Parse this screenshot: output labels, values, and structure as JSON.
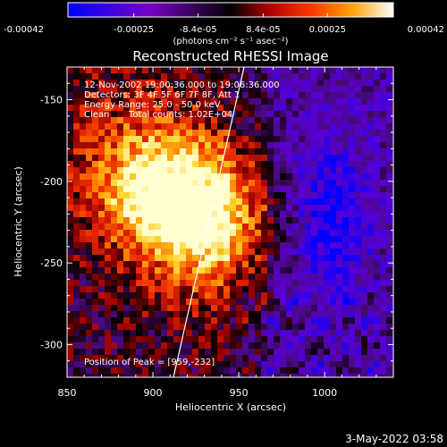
{
  "colorbar": {
    "tick_labels": [
      "-0.00042",
      "-0.00025",
      "-8.4e-05",
      "8.4e-05",
      "0.00025",
      "0.00042"
    ],
    "tick_values": [
      -0.00042,
      -0.00025,
      -8.4e-05,
      8.4e-05,
      0.00025,
      0.00042
    ],
    "range": [
      -0.00042,
      0.00042
    ],
    "units_label": "(photons cm⁻² s⁻¹ asec⁻²)",
    "colormap": [
      "#0000ff",
      "#7a00c8",
      "#000000",
      "#9a0000",
      "#ff3000",
      "#ff9a00",
      "#ffff80",
      "#ffffff"
    ]
  },
  "plot": {
    "title": "Reconstructed RHESSI Image",
    "info_lines": [
      "12-Nov-2002 19:00:36.000 to 19:06:36.000",
      "Detectors: 3F 4F 5F 6F 7F 8F, Att 1",
      "Energy Range: 25.0 - 50.0 keV"
    ],
    "clean_label": "Clean",
    "total_counts_label": "Total counts: 1.02E+04",
    "peak_label": "Position of Peak = [959,-232]",
    "xlabel": "Heliocentric X (arcsec)",
    "ylabel": "Heliocentric Y (arcsec)",
    "x_tick_labels": [
      "850",
      "900",
      "950",
      "1000"
    ],
    "y_tick_labels": [
      "-150",
      "-200",
      "-250",
      "-300"
    ],
    "x_ticks": [
      850,
      900,
      950,
      1000
    ],
    "y_ticks": [
      -150,
      -200,
      -250,
      -300
    ],
    "xlim": [
      850,
      1040
    ],
    "ylim": [
      -320,
      -130
    ],
    "peak": [
      959,
      -232
    ]
  },
  "timestamp": "3-May-2022 03:58"
}
